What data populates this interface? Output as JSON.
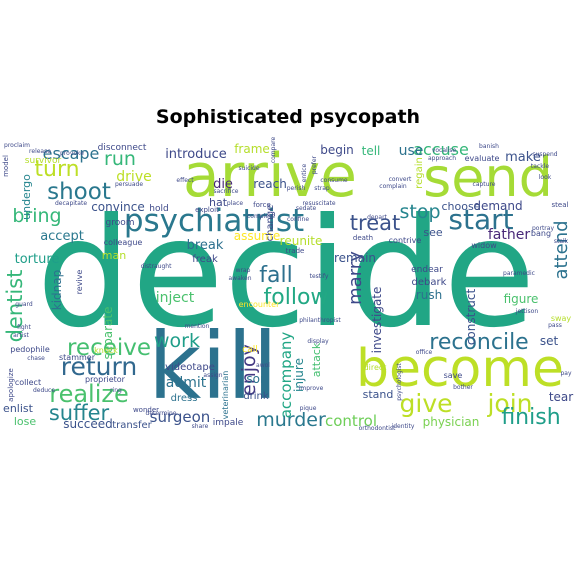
{
  "title": "Sophisticated psycopath",
  "words": [
    {
      "text": "decide",
      "color": "#21a685"
    },
    {
      "text": "kill",
      "color": "#2c728e"
    },
    {
      "text": "arrive",
      "color": "#a5db36"
    },
    {
      "text": "send",
      "color": "#a5db36"
    },
    {
      "text": "become",
      "color": "#bddf26"
    },
    {
      "text": "psychiatrist",
      "color": "#2a788e"
    },
    {
      "text": "start",
      "color": "#2c728e"
    },
    {
      "text": "give",
      "color": "#bddf26"
    },
    {
      "text": "join",
      "color": "#bddf26"
    },
    {
      "text": "return",
      "color": "#31688e"
    },
    {
      "text": "reconcile",
      "color": "#2c728e"
    },
    {
      "text": "receive",
      "color": "#44bf70"
    },
    {
      "text": "shoot",
      "color": "#2a788e"
    },
    {
      "text": "turn",
      "color": "#bddf26"
    },
    {
      "text": "realize",
      "color": "#4ac16d"
    },
    {
      "text": "follow",
      "color": "#22a884"
    },
    {
      "text": "fall",
      "color": "#2d708e"
    },
    {
      "text": "suffer",
      "color": "#25858e"
    },
    {
      "text": "finish",
      "color": "#1f9e89"
    },
    {
      "text": "murder",
      "color": "#2a788e"
    },
    {
      "text": "dentist",
      "color": "#35b779"
    },
    {
      "text": "bring",
      "color": "#35b779"
    },
    {
      "text": "treat",
      "color": "#3b528b"
    },
    {
      "text": "stop",
      "color": "#25858e"
    },
    {
      "text": "marry",
      "color": "#3e4989"
    },
    {
      "text": "attend",
      "color": "#2c728e"
    },
    {
      "text": "enjoy",
      "color": "#443983"
    },
    {
      "text": "run",
      "color": "#35b779"
    },
    {
      "text": "work",
      "color": "#1f9e89"
    },
    {
      "text": "escape",
      "color": "#2c728e"
    },
    {
      "text": "accuse",
      "color": "#35b779"
    },
    {
      "text": "surgeon",
      "color": "#3b528b"
    },
    {
      "text": "control",
      "color": "#6ece58"
    },
    {
      "text": "accompany",
      "color": "#21a685"
    },
    {
      "text": "introduce",
      "color": "#3e4989"
    },
    {
      "text": "make",
      "color": "#3b528b"
    },
    {
      "text": "use",
      "color": "#2c728e"
    },
    {
      "text": "drive",
      "color": "#bddf26"
    },
    {
      "text": "accept",
      "color": "#2a788e"
    },
    {
      "text": "inject",
      "color": "#4ac16d"
    },
    {
      "text": "investigate",
      "color": "#3e4989"
    },
    {
      "text": "admit",
      "color": "#2c728e"
    },
    {
      "text": "break",
      "color": "#2d708e"
    },
    {
      "text": "father",
      "color": "#482878"
    },
    {
      "text": "torture",
      "color": "#1f9e89"
    },
    {
      "text": "remain",
      "color": "#3b528b"
    },
    {
      "text": "construct",
      "color": "#3b528b"
    },
    {
      "text": "die",
      "color": "#482878"
    },
    {
      "text": "reach",
      "color": "#3b528b"
    },
    {
      "text": "undergo",
      "color": "#25858e"
    },
    {
      "text": "separate",
      "color": "#4ac16d"
    },
    {
      "text": "kidnap",
      "color": "#2d708e"
    },
    {
      "text": "physician",
      "color": "#7ad151"
    },
    {
      "text": "tell",
      "color": "#35b779"
    },
    {
      "text": "begin",
      "color": "#3e4989"
    },
    {
      "text": "demand",
      "color": "#3e4989"
    },
    {
      "text": "choose",
      "color": "#3b528b"
    },
    {
      "text": "rush",
      "color": "#2d708e"
    },
    {
      "text": "set",
      "color": "#3b528b"
    },
    {
      "text": "figure",
      "color": "#4ac16d"
    },
    {
      "text": "tear",
      "color": "#3e4989"
    },
    {
      "text": "son",
      "color": "#2c728e"
    },
    {
      "text": "injure",
      "color": "#25858e"
    },
    {
      "text": "reunite",
      "color": "#b5de2b"
    },
    {
      "text": "frame",
      "color": "#b5de2b"
    },
    {
      "text": "convince",
      "color": "#3b528b"
    },
    {
      "text": "assume",
      "color": "#fde725"
    },
    {
      "text": "succeed",
      "color": "#3b528b"
    },
    {
      "text": "lose",
      "color": "#4ac16d"
    },
    {
      "text": "enlist",
      "color": "#3b528b"
    },
    {
      "text": "hat",
      "color": "#3e4989"
    },
    {
      "text": "man",
      "color": "#b5de2b"
    },
    {
      "text": "stand",
      "color": "#3b528b"
    },
    {
      "text": "attack",
      "color": "#44bf70"
    },
    {
      "text": "drink",
      "color": "#3b528b"
    },
    {
      "text": "see",
      "color": "#3b528b"
    },
    {
      "text": "regain",
      "color": "#b5de2b"
    },
    {
      "text": "debark",
      "color": "#3e4989"
    },
    {
      "text": "endear",
      "color": "#3e4989"
    },
    {
      "text": "transfer",
      "color": "#3b528b"
    },
    {
      "text": "dress",
      "color": "#2c728e"
    },
    {
      "text": "videotape",
      "color": "#3e4989"
    },
    {
      "text": "freak",
      "color": "#3e4989"
    },
    {
      "text": "veterinarian",
      "color": "#2c728e"
    },
    {
      "text": "change",
      "color": "#3e4989"
    },
    {
      "text": "groom",
      "color": "#3e4989"
    },
    {
      "text": "revive",
      "color": "#3e4989"
    },
    {
      "text": "bang",
      "color": "#3e4989"
    },
    {
      "text": "colleague",
      "color": "#3e4989"
    },
    {
      "text": "sway",
      "color": "#b5de2b"
    },
    {
      "text": "hold",
      "color": "#3e4989"
    },
    {
      "text": "disconnect",
      "color": "#3e4989"
    },
    {
      "text": "survivor",
      "color": "#b5de2b"
    },
    {
      "text": "impale",
      "color": "#3e4989"
    },
    {
      "text": "proprietor",
      "color": "#3e4989"
    },
    {
      "text": "knock",
      "color": "#b5de2b"
    },
    {
      "text": "call",
      "color": "#fde725"
    },
    {
      "text": "contrive",
      "color": "#3e4989"
    },
    {
      "text": "widow",
      "color": "#3e4989"
    },
    {
      "text": "save",
      "color": "#3e4989"
    },
    {
      "text": "evaluate",
      "color": "#3e4989"
    },
    {
      "text": "stammer",
      "color": "#3e4989"
    },
    {
      "text": "pedophile",
      "color": "#3e4989"
    },
    {
      "text": "collect",
      "color": "#3e4989"
    },
    {
      "text": "encounter",
      "color": "#fde725"
    },
    {
      "text": "direct",
      "color": "#b5de2b"
    },
    {
      "text": "apologize",
      "color": "#3e4989"
    },
    {
      "text": "wonder",
      "color": "#3e4989"
    },
    {
      "text": "trade",
      "color": "#3e4989"
    },
    {
      "text": "death",
      "color": "#3e4989"
    },
    {
      "text": "model",
      "color": "#3e4989"
    },
    {
      "text": "steal",
      "color": "#3e4989"
    },
    {
      "text": "exploit",
      "color": "#3e4989"
    },
    {
      "text": "effect",
      "color": "#3e4989"
    },
    {
      "text": "force",
      "color": "#3e4989"
    },
    {
      "text": "entice",
      "color": "#3e4989"
    },
    {
      "text": "prefer",
      "color": "#3e4989"
    },
    {
      "text": "psychologist",
      "color": "#3e4989"
    },
    {
      "text": "jettison",
      "color": "#3e4989"
    },
    {
      "text": "capture",
      "color": "#3e4989"
    },
    {
      "text": "complain",
      "color": "#3e4989"
    },
    {
      "text": "testify",
      "color": "#3e4989"
    },
    {
      "text": "depart",
      "color": "#3e4989"
    },
    {
      "text": "strap",
      "color": "#3e4989"
    },
    {
      "text": "display",
      "color": "#3e4989"
    },
    {
      "text": "fight",
      "color": "#3e4989"
    },
    {
      "text": "office",
      "color": "#3e4989"
    },
    {
      "text": "improve",
      "color": "#3e4989"
    },
    {
      "text": "deduce",
      "color": "#3e4989"
    },
    {
      "text": "identity",
      "color": "#3e4989"
    },
    {
      "text": "share",
      "color": "#3e4989"
    },
    {
      "text": "pique",
      "color": "#3e4989"
    },
    {
      "text": "awol",
      "color": "#3e4989"
    },
    {
      "text": "artist",
      "color": "#3e4989"
    },
    {
      "text": "chase",
      "color": "#3e4989"
    },
    {
      "text": "distraught",
      "color": "#3e4989"
    },
    {
      "text": "determine",
      "color": "#3e4989"
    },
    {
      "text": "approach",
      "color": "#3e4989"
    },
    {
      "text": "banish",
      "color": "#3e4989"
    },
    {
      "text": "pass",
      "color": "#3e4989"
    },
    {
      "text": "ring",
      "color": "#3e4989"
    },
    {
      "text": "mention",
      "color": "#3e4989"
    },
    {
      "text": "compare",
      "color": "#3e4989"
    },
    {
      "text": "assign",
      "color": "#3e4989"
    },
    {
      "text": "awaken",
      "color": "#3e4989"
    },
    {
      "text": "wrap",
      "color": "#3e4989"
    },
    {
      "text": "sacrifice",
      "color": "#3e4989"
    },
    {
      "text": "place",
      "color": "#3e4989"
    },
    {
      "text": "portray",
      "color": "#3e4989"
    },
    {
      "text": "provoke",
      "color": "#3e4989"
    },
    {
      "text": "release",
      "color": "#3e4989"
    },
    {
      "text": "proclaim",
      "color": "#3e4989"
    },
    {
      "text": "persuade",
      "color": "#3e4989"
    },
    {
      "text": "decapitate",
      "color": "#3e4989"
    },
    {
      "text": "sedate",
      "color": "#3e4989"
    },
    {
      "text": "confine",
      "color": "#3e4989"
    },
    {
      "text": "resuscitate",
      "color": "#3e4989"
    },
    {
      "text": "consume",
      "color": "#3e4989"
    },
    {
      "text": "perish",
      "color": "#3e4989"
    },
    {
      "text": "philanthropist",
      "color": "#3e4989"
    },
    {
      "text": "stalk",
      "color": "#3e4989"
    },
    {
      "text": "suspend",
      "color": "#3e4989"
    },
    {
      "text": "complete",
      "color": "#3e4989"
    },
    {
      "text": "look",
      "color": "#3e4989"
    },
    {
      "text": "orthodontist",
      "color": "#3e4989"
    },
    {
      "text": "bother",
      "color": "#3e4989"
    },
    {
      "text": "vocalise",
      "color": "#3e4989"
    },
    {
      "text": "convert",
      "color": "#3e4989"
    },
    {
      "text": "paramedic",
      "color": "#3e4989"
    },
    {
      "text": "tackle",
      "color": "#3e4989"
    },
    {
      "text": "suicide",
      "color": "#3e4989"
    },
    {
      "text": "guard",
      "color": "#3e4989"
    },
    {
      "text": "pay",
      "color": "#3e4989"
    }
  ]
}
